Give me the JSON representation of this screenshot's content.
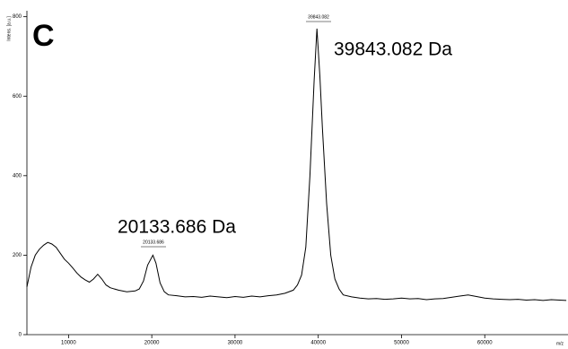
{
  "chart_data": {
    "type": "line",
    "panel_label": "C",
    "y_label": "Intens. [a.u.]",
    "x_label": "m/z",
    "annotations": [
      "39843.082 Da",
      "20133.686 Da"
    ],
    "peak_labels": [
      "39843.082",
      "20133.686"
    ],
    "x": [
      5000,
      5500,
      6000,
      6500,
      7000,
      7500,
      8000,
      8500,
      9000,
      9500,
      10000,
      10500,
      11000,
      11500,
      12000,
      12500,
      13000,
      13500,
      14000,
      14500,
      15000,
      16000,
      17000,
      18000,
      18500,
      19000,
      19500,
      20133,
      20500,
      21000,
      21500,
      22000,
      23000,
      24000,
      25000,
      26000,
      27000,
      28000,
      29000,
      30000,
      31000,
      32000,
      33000,
      34000,
      35000,
      36000,
      37000,
      37500,
      38000,
      38500,
      39000,
      39500,
      39843,
      40200,
      40500,
      41000,
      41500,
      42000,
      42500,
      43000,
      44000,
      45000,
      46000,
      47000,
      48000,
      49000,
      50000,
      51000,
      52000,
      53000,
      54000,
      55000,
      56000,
      57000,
      58000,
      59000,
      60000,
      61000,
      62000,
      63000,
      64000,
      65000,
      66000,
      67000,
      68000,
      69000,
      69800
    ],
    "values": [
      120,
      170,
      200,
      215,
      225,
      232,
      228,
      220,
      205,
      190,
      180,
      168,
      155,
      145,
      138,
      132,
      140,
      152,
      140,
      125,
      118,
      112,
      108,
      110,
      115,
      135,
      175,
      200,
      180,
      130,
      108,
      100,
      98,
      95,
      96,
      94,
      97,
      95,
      93,
      96,
      94,
      97,
      95,
      98,
      100,
      104,
      112,
      125,
      150,
      220,
      400,
      640,
      770,
      650,
      520,
      330,
      200,
      140,
      115,
      100,
      95,
      92,
      90,
      91,
      89,
      90,
      92,
      90,
      91,
      88,
      90,
      91,
      94,
      97,
      100,
      96,
      92,
      90,
      89,
      88,
      89,
      87,
      88,
      86,
      88,
      87,
      86
    ],
    "color": "#000000",
    "xlim": [
      5000,
      70000
    ],
    "ylim": [
      0,
      815
    ],
    "xticks": [
      10000,
      20000,
      30000,
      40000,
      50000,
      60000
    ],
    "yticks": [
      0,
      200,
      400,
      600,
      800
    ],
    "grid": false
  }
}
